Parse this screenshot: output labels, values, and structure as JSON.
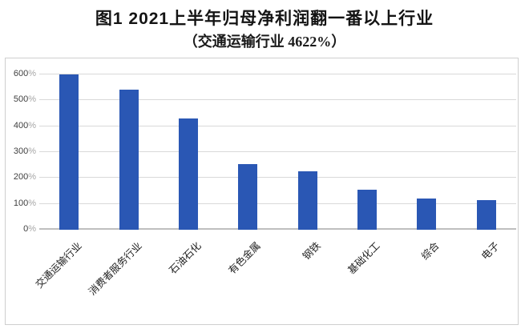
{
  "figure": {
    "title": "图1  2021上半年归母净利润翻一番以上行业",
    "subtitle": "（交通运输行业 4622%）"
  },
  "chart_data": {
    "type": "bar",
    "title": "图1  2021上半年归母净利润翻一番以上行业",
    "subtitle": "（交通运输行业 4622%）",
    "categories": [
      "交通运输行业",
      "消费者服务行业",
      "石油石化",
      "有色金属",
      "钢铁",
      "基础化工",
      "综合",
      "电子"
    ],
    "values": [
      600,
      540,
      430,
      255,
      225,
      155,
      120,
      115
    ],
    "first_bar_actual": "4622%",
    "first_bar_clipped_at_axis_max": true,
    "ylim": [
      0,
      600
    ],
    "yticks": [
      "0%",
      "100%",
      "200%",
      "300%",
      "400%",
      "500%",
      "600%"
    ],
    "xlabel": "",
    "ylabel": "",
    "grid": true,
    "legend": false,
    "bar_color": "#2a57b4",
    "gridline_color": "#d9d9d9",
    "axis_text_color": "#3f3f3f"
  }
}
